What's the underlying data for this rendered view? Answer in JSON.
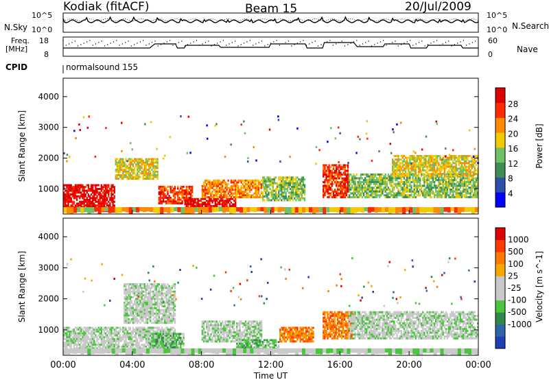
{
  "header": {
    "station": "Kodiak (fitACF)",
    "beam": "Beam 15",
    "date": "20/Jul/2009"
  },
  "status_panel": {
    "nsky_label": "N.Sky",
    "nsky_ticks": [
      "10^5",
      "10^0"
    ],
    "nsearch_label": "N.Search",
    "nsearch_ticks": [
      "10^5",
      "10^0"
    ],
    "freq_label_line1": "Freq.",
    "freq_label_line2": "[MHz]",
    "freq_ticks": [
      "18",
      "8"
    ],
    "nave_label": "Nave",
    "nave_ticks": [
      "60",
      "0"
    ],
    "cpid_label": "CPID",
    "cpid_value": "normalsound 155"
  },
  "chart_data": [
    {
      "type": "heatmap",
      "name": "power",
      "ylabel": "Slant Range [km]",
      "ylim": [
        180,
        4600
      ],
      "yticks": [
        "1000",
        "2000",
        "3000",
        "4000"
      ],
      "colorbar_label": "Power [dB]",
      "colorbar_ticks": [
        "4",
        "8",
        "12",
        "16",
        "20",
        "24",
        "28"
      ],
      "colors": [
        "#0000ff",
        "#2d51a8",
        "#3f8c55",
        "#6ec166",
        "#f3ca00",
        "#ff8a00",
        "#ff2a00",
        "#e00000"
      ],
      "regions": [
        {
          "t0": 0.0,
          "t1": 3.0,
          "r0": 250,
          "r1": 1150,
          "level": 7
        },
        {
          "t0": 3.0,
          "t1": 5.5,
          "r0": 1300,
          "r1": 2000,
          "level": 4
        },
        {
          "t0": 5.5,
          "t1": 7.5,
          "r0": 500,
          "r1": 1100,
          "level": 6
        },
        {
          "t0": 7.0,
          "t1": 10.0,
          "r0": 300,
          "r1": 700,
          "level": 7
        },
        {
          "t0": 8.0,
          "t1": 11.5,
          "r0": 700,
          "r1": 1300,
          "level": 5
        },
        {
          "t0": 11.5,
          "t1": 14.0,
          "r0": 600,
          "r1": 1400,
          "level": 3
        },
        {
          "t0": 15.0,
          "t1": 16.5,
          "r0": 700,
          "r1": 1800,
          "level": 6
        },
        {
          "t0": 16.5,
          "t1": 24.0,
          "r0": 700,
          "r1": 1500,
          "level": 3
        },
        {
          "t0": 19.0,
          "t1": 24.0,
          "r0": 1400,
          "r1": 2100,
          "level": 4
        }
      ]
    },
    {
      "type": "heatmap",
      "name": "velocity",
      "ylabel": "Slant Range [km]",
      "ylim": [
        180,
        4600
      ],
      "yticks": [
        "1000",
        "2000",
        "3000",
        "4000"
      ],
      "xlabel": "Time UT",
      "xticks": [
        "00:00",
        "04:00",
        "08:00",
        "12:00",
        "16:00",
        "20:00",
        "00:00"
      ],
      "colorbar_label": "Velocity [m s^-1]",
      "colorbar_ticks": [
        "1000",
        "500",
        "100",
        "25",
        "-25",
        "-100",
        "-500",
        "-1000"
      ],
      "colors": [
        "#1c3fb6",
        "#2b64a8",
        "#2f8a4a",
        "#4bc43e",
        "#c9c9c9",
        "#c9c9c9",
        "#f5a800",
        "#ff7a00",
        "#ff3a00",
        "#e00000"
      ],
      "regions": [
        {
          "t0": 0.0,
          "t1": 6.5,
          "r0": 250,
          "r1": 1100,
          "level": 4
        },
        {
          "t0": 3.5,
          "t1": 6.5,
          "r0": 1200,
          "r1": 2500,
          "level": 4
        },
        {
          "t0": 5.0,
          "t1": 7.0,
          "r0": 400,
          "r1": 900,
          "level": 3
        },
        {
          "t0": 8.0,
          "t1": 11.5,
          "r0": 600,
          "r1": 1300,
          "level": 4
        },
        {
          "t0": 10.0,
          "t1": 12.5,
          "r0": 300,
          "r1": 700,
          "level": 3
        },
        {
          "t0": 12.5,
          "t1": 14.5,
          "r0": 600,
          "r1": 1100,
          "level": 7
        },
        {
          "t0": 15.0,
          "t1": 16.8,
          "r0": 700,
          "r1": 1600,
          "level": 7
        },
        {
          "t0": 16.5,
          "t1": 24.0,
          "r0": 700,
          "r1": 1600,
          "level": 4
        }
      ]
    }
  ]
}
